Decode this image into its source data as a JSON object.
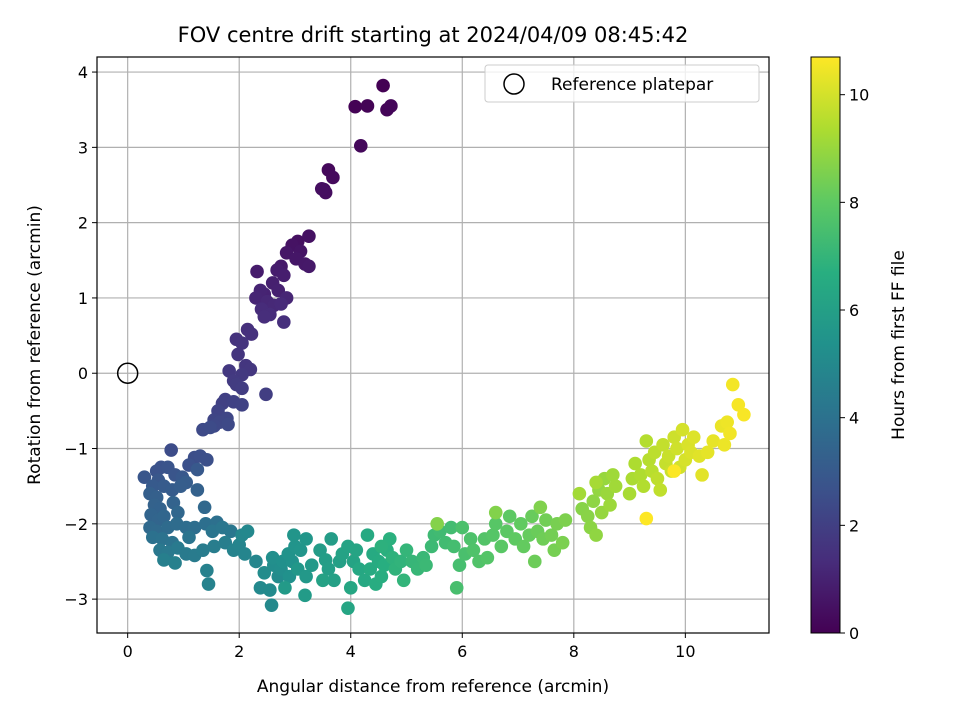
{
  "chart_data": {
    "type": "scatter",
    "title": "FOV centre drift starting at 2024/04/09 08:45:42",
    "xlabel": "Angular distance from reference (arcmin)",
    "ylabel": "Rotation from reference (arcmin)",
    "xlim": [
      -0.55,
      11.5
    ],
    "ylim": [
      -3.45,
      4.2
    ],
    "xticks": [
      0,
      2,
      4,
      6,
      8,
      10
    ],
    "yticks": [
      -3,
      -2,
      -1,
      0,
      1,
      2,
      3,
      4
    ],
    "grid": true,
    "legend": {
      "position": "top-right",
      "entries": [
        "Reference platepar"
      ]
    },
    "colorbar": {
      "label": "Hours from first FF file",
      "range": [
        0,
        10.7
      ],
      "ticks": [
        0,
        2,
        4,
        6,
        8,
        10
      ],
      "colormap": "viridis"
    },
    "reference_point": {
      "x": 0,
      "y": 0
    },
    "series": [
      {
        "points": [
          [
            4.58,
            3.82
          ],
          [
            4.08,
            3.54
          ],
          [
            4.3,
            3.55
          ],
          [
            4.65,
            3.5
          ],
          [
            4.72,
            3.55
          ],
          [
            4.18,
            3.02
          ],
          [
            3.6,
            2.7
          ],
          [
            3.68,
            2.6
          ],
          [
            3.52,
            2.44
          ],
          [
            3.55,
            2.4
          ],
          [
            3.48,
            2.45
          ],
          [
            3.05,
            1.75
          ],
          [
            3.25,
            1.82
          ],
          [
            2.95,
            1.7
          ],
          [
            3.1,
            1.62
          ],
          [
            2.85,
            1.6
          ],
          [
            3.02,
            1.52
          ],
          [
            3.18,
            1.45
          ],
          [
            3.25,
            1.42
          ],
          [
            2.75,
            1.42
          ],
          [
            2.32,
            1.35
          ],
          [
            2.68,
            1.37
          ],
          [
            2.8,
            1.3
          ],
          [
            2.6,
            1.2
          ],
          [
            2.7,
            1.1
          ],
          [
            2.45,
            1.05
          ],
          [
            2.38,
            1.1
          ],
          [
            2.3,
            1.0
          ],
          [
            2.85,
            1.0
          ],
          [
            2.5,
            0.95
          ],
          [
            2.62,
            0.9
          ],
          [
            2.75,
            0.92
          ],
          [
            2.4,
            0.85
          ],
          [
            2.55,
            0.78
          ],
          [
            2.45,
            0.75
          ],
          [
            2.8,
            0.68
          ],
          [
            2.15,
            0.58
          ],
          [
            2.22,
            0.52
          ],
          [
            1.95,
            0.45
          ],
          [
            2.05,
            0.4
          ],
          [
            1.98,
            0.25
          ],
          [
            2.12,
            0.1
          ],
          [
            2.2,
            0.05
          ],
          [
            1.82,
            0.03
          ],
          [
            2.05,
            -0.02
          ],
          [
            1.9,
            -0.1
          ],
          [
            1.95,
            -0.15
          ],
          [
            2.05,
            -0.2
          ],
          [
            2.48,
            -0.28
          ],
          [
            1.75,
            -0.35
          ],
          [
            1.7,
            -0.4
          ],
          [
            1.9,
            -0.38
          ],
          [
            2.05,
            -0.42
          ],
          [
            1.62,
            -0.5
          ],
          [
            1.55,
            -0.62
          ],
          [
            1.78,
            -0.6
          ],
          [
            1.65,
            -0.65
          ],
          [
            1.55,
            -0.7
          ],
          [
            1.8,
            -0.68
          ],
          [
            1.35,
            -0.75
          ],
          [
            1.48,
            -0.72
          ],
          [
            0.78,
            -1.02
          ],
          [
            1.2,
            -1.12
          ],
          [
            1.3,
            -1.1
          ],
          [
            1.42,
            -1.15
          ],
          [
            1.1,
            -1.22
          ],
          [
            0.6,
            -1.25
          ],
          [
            0.52,
            -1.3
          ],
          [
            0.72,
            -1.25
          ],
          [
            0.85,
            -1.35
          ],
          [
            0.3,
            -1.38
          ],
          [
            0.55,
            -1.42
          ],
          [
            0.98,
            -1.38
          ],
          [
            1.25,
            -1.28
          ],
          [
            0.45,
            -1.5
          ],
          [
            0.65,
            -1.5
          ],
          [
            0.8,
            -1.55
          ],
          [
            1.05,
            -1.45
          ],
          [
            0.95,
            -1.5
          ],
          [
            0.4,
            -1.6
          ],
          [
            0.52,
            -1.65
          ],
          [
            1.25,
            -1.55
          ],
          [
            0.48,
            -1.75
          ],
          [
            0.58,
            -1.8
          ],
          [
            0.82,
            -1.72
          ],
          [
            0.42,
            -1.88
          ],
          [
            0.55,
            -1.95
          ],
          [
            0.65,
            -1.9
          ],
          [
            0.9,
            -1.85
          ],
          [
            1.38,
            -1.78
          ],
          [
            0.4,
            -2.05
          ],
          [
            0.52,
            -2.1
          ],
          [
            0.72,
            -2.05
          ],
          [
            0.88,
            -2.0
          ],
          [
            1.05,
            -2.05
          ],
          [
            1.2,
            -2.05
          ],
          [
            1.4,
            -2.0
          ],
          [
            1.6,
            -1.98
          ],
          [
            0.45,
            -2.18
          ],
          [
            0.62,
            -2.2
          ],
          [
            0.8,
            -2.25
          ],
          [
            1.1,
            -2.18
          ],
          [
            1.52,
            -2.1
          ],
          [
            1.7,
            -2.05
          ],
          [
            1.85,
            -2.1
          ],
          [
            0.58,
            -2.35
          ],
          [
            0.72,
            -2.38
          ],
          [
            0.9,
            -2.32
          ],
          [
            1.05,
            -2.4
          ],
          [
            1.2,
            -2.42
          ],
          [
            1.35,
            -2.35
          ],
          [
            1.55,
            -2.3
          ],
          [
            1.75,
            -2.25
          ],
          [
            0.65,
            -2.48
          ],
          [
            0.85,
            -2.52
          ],
          [
            1.42,
            -2.62
          ],
          [
            1.45,
            -2.8
          ],
          [
            1.9,
            -2.35
          ],
          [
            2.0,
            -2.28
          ],
          [
            2.1,
            -2.4
          ],
          [
            2.3,
            -2.5
          ],
          [
            2.05,
            -2.15
          ],
          [
            2.15,
            -2.1
          ],
          [
            2.38,
            -2.85
          ],
          [
            2.58,
            -3.08
          ],
          [
            2.55,
            -2.88
          ],
          [
            2.7,
            -2.7
          ],
          [
            2.45,
            -2.65
          ],
          [
            2.62,
            -2.55
          ],
          [
            2.75,
            -2.6
          ],
          [
            2.6,
            -2.45
          ],
          [
            2.78,
            -2.5
          ],
          [
            2.9,
            -2.7
          ],
          [
            2.95,
            -2.5
          ],
          [
            2.88,
            -2.4
          ],
          [
            3.0,
            -2.3
          ],
          [
            3.1,
            -2.35
          ],
          [
            2.98,
            -2.15
          ],
          [
            3.2,
            -2.2
          ],
          [
            3.05,
            -2.6
          ],
          [
            3.2,
            -2.7
          ],
          [
            3.3,
            -2.55
          ],
          [
            2.82,
            -2.85
          ],
          [
            3.18,
            -2.95
          ],
          [
            3.45,
            -2.35
          ],
          [
            3.65,
            -2.2
          ],
          [
            3.55,
            -2.48
          ],
          [
            3.6,
            -2.6
          ],
          [
            3.8,
            -2.5
          ],
          [
            3.7,
            -2.75
          ],
          [
            3.5,
            -2.75
          ],
          [
            3.85,
            -2.4
          ],
          [
            3.95,
            -2.3
          ],
          [
            4.05,
            -2.5
          ],
          [
            4.1,
            -2.35
          ],
          [
            3.95,
            -3.12
          ],
          [
            4.0,
            -2.85
          ],
          [
            4.15,
            -2.6
          ],
          [
            4.25,
            -2.75
          ],
          [
            4.3,
            -2.15
          ],
          [
            4.4,
            -2.4
          ],
          [
            4.35,
            -2.6
          ],
          [
            4.5,
            -2.5
          ],
          [
            4.45,
            -2.8
          ],
          [
            4.55,
            -2.7
          ],
          [
            4.6,
            -2.55
          ],
          [
            4.65,
            -2.35
          ],
          [
            4.7,
            -2.2
          ],
          [
            4.55,
            -2.3
          ],
          [
            4.75,
            -2.45
          ],
          [
            4.8,
            -2.6
          ],
          [
            4.9,
            -2.5
          ],
          [
            4.95,
            -2.75
          ],
          [
            5.0,
            -2.35
          ],
          [
            5.1,
            -2.5
          ],
          [
            5.2,
            -2.6
          ],
          [
            5.3,
            -2.45
          ],
          [
            5.35,
            -2.55
          ],
          [
            5.45,
            -2.3
          ],
          [
            5.5,
            -2.15
          ],
          [
            5.6,
            -2.1
          ],
          [
            5.7,
            -2.25
          ],
          [
            5.8,
            -2.05
          ],
          [
            5.85,
            -2.3
          ],
          [
            5.95,
            -2.55
          ],
          [
            5.9,
            -2.85
          ],
          [
            6.05,
            -2.4
          ],
          [
            6.0,
            -2.05
          ],
          [
            6.15,
            -2.2
          ],
          [
            6.2,
            -2.35
          ],
          [
            6.3,
            -2.5
          ],
          [
            6.4,
            -2.2
          ],
          [
            6.45,
            -2.45
          ],
          [
            6.55,
            -2.15
          ],
          [
            6.6,
            -2.0
          ],
          [
            6.7,
            -2.3
          ],
          [
            6.8,
            -2.1
          ],
          [
            6.85,
            -1.9
          ],
          [
            6.95,
            -2.2
          ],
          [
            7.05,
            -2.0
          ],
          [
            7.1,
            -2.3
          ],
          [
            7.2,
            -2.15
          ],
          [
            7.25,
            -1.9
          ],
          [
            7.35,
            -2.1
          ],
          [
            7.3,
            -2.5
          ],
          [
            7.45,
            -2.2
          ],
          [
            7.5,
            -1.95
          ],
          [
            7.6,
            -2.15
          ],
          [
            7.65,
            -2.35
          ],
          [
            7.7,
            -2.0
          ],
          [
            7.8,
            -2.25
          ],
          [
            7.85,
            -1.95
          ],
          [
            7.4,
            -1.78
          ],
          [
            6.6,
            -1.85
          ],
          [
            5.55,
            -2.0
          ],
          [
            8.15,
            -1.8
          ],
          [
            8.25,
            -1.9
          ],
          [
            8.3,
            -2.05
          ],
          [
            8.35,
            -1.7
          ],
          [
            8.4,
            -2.15
          ],
          [
            8.45,
            -1.55
          ],
          [
            8.5,
            -1.85
          ],
          [
            8.55,
            -1.4
          ],
          [
            8.6,
            -1.6
          ],
          [
            8.65,
            -1.75
          ],
          [
            8.7,
            -1.35
          ],
          [
            8.75,
            -1.5
          ],
          [
            8.1,
            -1.6
          ],
          [
            8.4,
            -1.45
          ],
          [
            9.0,
            -1.6
          ],
          [
            9.05,
            -1.4
          ],
          [
            9.1,
            -1.2
          ],
          [
            9.2,
            -1.35
          ],
          [
            9.25,
            -1.5
          ],
          [
            9.3,
            -0.9
          ],
          [
            9.35,
            -1.15
          ],
          [
            9.4,
            -1.3
          ],
          [
            9.45,
            -1.05
          ],
          [
            9.5,
            -1.4
          ],
          [
            9.55,
            -1.55
          ],
          [
            9.6,
            -0.95
          ],
          [
            9.65,
            -1.2
          ],
          [
            9.7,
            -1.1
          ],
          [
            9.75,
            -1.3
          ],
          [
            9.8,
            -0.85
          ],
          [
            9.85,
            -1.0
          ],
          [
            9.9,
            -1.25
          ],
          [
            9.95,
            -0.75
          ],
          [
            10.0,
            -1.15
          ],
          [
            10.05,
            -0.95
          ],
          [
            10.1,
            -1.05
          ],
          [
            10.15,
            -0.85
          ],
          [
            10.25,
            -1.1
          ],
          [
            10.3,
            -1.35
          ],
          [
            10.4,
            -1.05
          ],
          [
            10.5,
            -0.9
          ],
          [
            10.65,
            -0.7
          ],
          [
            10.7,
            -0.95
          ],
          [
            10.75,
            -0.65
          ],
          [
            10.8,
            -0.8
          ],
          [
            10.85,
            -0.15
          ],
          [
            10.95,
            -0.42
          ],
          [
            11.05,
            -0.55
          ],
          [
            9.8,
            -1.3
          ],
          [
            9.3,
            -1.93
          ]
        ]
      }
    ]
  }
}
